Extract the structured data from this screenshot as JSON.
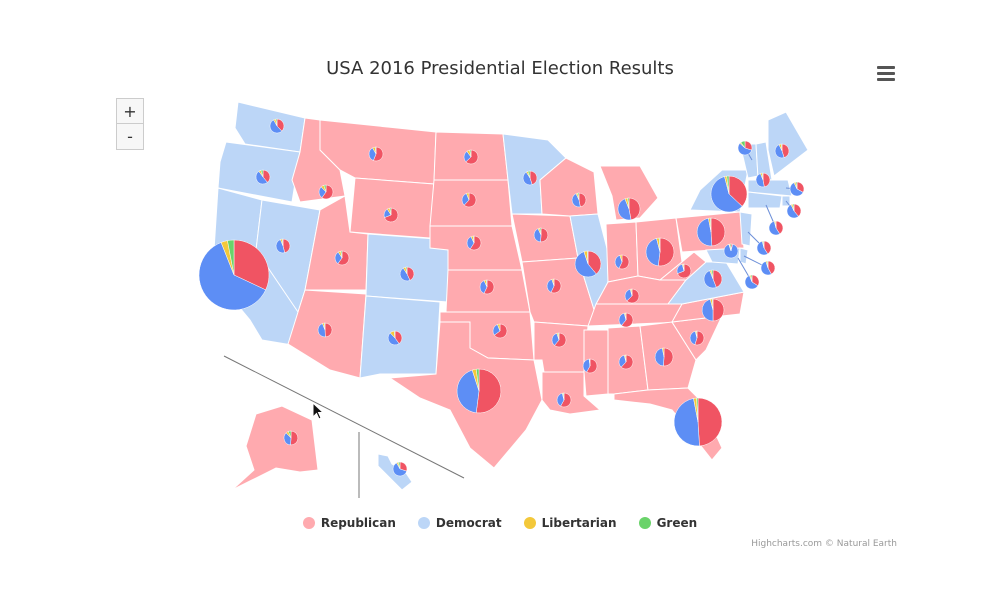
{
  "title": "USA 2016 Presidential Election Results",
  "credits": "Highcharts.com © Natural Earth",
  "zoom": {
    "in_label": "+",
    "out_label": "-"
  },
  "colors": {
    "republican_fill": "#ffaaaf",
    "democrat_fill": "#bcd6f7",
    "republican": "#f05463",
    "democrat": "#5d8ef5",
    "libertarian": "#f3c83a",
    "green": "#6ad36a"
  },
  "legend": [
    {
      "label": "Republican",
      "color": "#ffaaaf"
    },
    {
      "label": "Democrat",
      "color": "#bcd6f7"
    },
    {
      "label": "Libertarian",
      "color": "#f3c83a"
    },
    {
      "label": "Green",
      "color": "#6ad36a"
    }
  ],
  "chart_data": {
    "type": "map-pie",
    "title": "USA 2016 Presidential Election Results",
    "series": [
      "Republican",
      "Democrat",
      "Libertarian",
      "Green"
    ],
    "states": [
      {
        "state": "Washington",
        "winner": "Democrat",
        "shares": [
          38,
          54,
          5,
          3
        ]
      },
      {
        "state": "Oregon",
        "winner": "Democrat",
        "shares": [
          39,
          51,
          5,
          5
        ]
      },
      {
        "state": "California",
        "winner": "Democrat",
        "shares": [
          32,
          62,
          3,
          3
        ]
      },
      {
        "state": "Nevada",
        "winner": "Democrat",
        "shares": [
          46,
          48,
          4,
          2
        ]
      },
      {
        "state": "Idaho",
        "winner": "Republican",
        "shares": [
          60,
          28,
          7,
          5
        ]
      },
      {
        "state": "Montana",
        "winner": "Republican",
        "shares": [
          56,
          36,
          6,
          2
        ]
      },
      {
        "state": "Wyoming",
        "winner": "Republican",
        "shares": [
          69,
          22,
          6,
          3
        ]
      },
      {
        "state": "Utah",
        "winner": "Republican",
        "shares": [
          60,
          31,
          6,
          3
        ]
      },
      {
        "state": "Colorado",
        "winner": "Democrat",
        "shares": [
          43,
          48,
          6,
          3
        ]
      },
      {
        "state": "Arizona",
        "winner": "Republican",
        "shares": [
          49,
          45,
          4,
          2
        ]
      },
      {
        "state": "New Mexico",
        "winner": "Democrat",
        "shares": [
          40,
          48,
          10,
          2
        ]
      },
      {
        "state": "North Dakota",
        "winner": "Republican",
        "shares": [
          63,
          27,
          7,
          3
        ]
      },
      {
        "state": "South Dakota",
        "winner": "Republican",
        "shares": [
          62,
          32,
          6,
          0
        ]
      },
      {
        "state": "Nebraska",
        "winner": "Republican",
        "shares": [
          59,
          34,
          5,
          2
        ]
      },
      {
        "state": "Kansas",
        "winner": "Republican",
        "shares": [
          57,
          36,
          5,
          2
        ]
      },
      {
        "state": "Oklahoma",
        "winner": "Republican",
        "shares": [
          65,
          29,
          6,
          0
        ]
      },
      {
        "state": "Texas",
        "winner": "Republican",
        "shares": [
          52,
          43,
          3,
          2
        ]
      },
      {
        "state": "Minnesota",
        "winner": "Democrat",
        "shares": [
          45,
          46,
          4,
          5
        ]
      },
      {
        "state": "Iowa",
        "winner": "Republican",
        "shares": [
          51,
          42,
          4,
          3
        ]
      },
      {
        "state": "Missouri",
        "winner": "Republican",
        "shares": [
          57,
          38,
          4,
          1
        ]
      },
      {
        "state": "Arkansas",
        "winner": "Republican",
        "shares": [
          61,
          34,
          3,
          2
        ]
      },
      {
        "state": "Louisiana",
        "winner": "Republican",
        "shares": [
          58,
          38,
          2,
          2
        ]
      },
      {
        "state": "Wisconsin",
        "winner": "Republican",
        "shares": [
          47,
          46,
          4,
          3
        ]
      },
      {
        "state": "Illinois",
        "winner": "Democrat",
        "shares": [
          39,
          56,
          4,
          1
        ]
      },
      {
        "state": "Michigan",
        "winner": "Republican",
        "shares": [
          47,
          47,
          4,
          2
        ]
      },
      {
        "state": "Indiana",
        "winner": "Republican",
        "shares": [
          57,
          38,
          5,
          0
        ]
      },
      {
        "state": "Ohio",
        "winner": "Republican",
        "shares": [
          52,
          44,
          3,
          1
        ]
      },
      {
        "state": "Kentucky",
        "winner": "Republican",
        "shares": [
          63,
          33,
          3,
          1
        ]
      },
      {
        "state": "Tennessee",
        "winner": "Republican",
        "shares": [
          61,
          35,
          3,
          1
        ]
      },
      {
        "state": "Mississippi",
        "winner": "Republican",
        "shares": [
          58,
          40,
          1,
          1
        ]
      },
      {
        "state": "Alabama",
        "winner": "Republican",
        "shares": [
          62,
          34,
          3,
          1
        ]
      },
      {
        "state": "Georgia",
        "winner": "Republican",
        "shares": [
          51,
          46,
          3,
          0
        ]
      },
      {
        "state": "Florida",
        "winner": "Republican",
        "shares": [
          49,
          48,
          2,
          1
        ]
      },
      {
        "state": "South Carolina",
        "winner": "Republican",
        "shares": [
          55,
          41,
          3,
          1
        ]
      },
      {
        "state": "North Carolina",
        "winner": "Republican",
        "shares": [
          50,
          46,
          3,
          1
        ]
      },
      {
        "state": "Virginia",
        "winner": "Democrat",
        "shares": [
          44,
          50,
          3,
          3
        ]
      },
      {
        "state": "West Virginia",
        "winner": "Republican",
        "shares": [
          69,
          27,
          3,
          1
        ]
      },
      {
        "state": "Pennsylvania",
        "winner": "Republican",
        "shares": [
          49,
          48,
          2,
          1
        ]
      },
      {
        "state": "New York",
        "winner": "Democrat",
        "shares": [
          37,
          59,
          2,
          2
        ]
      },
      {
        "state": "Vermont",
        "winner": "Democrat",
        "shares": [
          30,
          57,
          3,
          10
        ]
      },
      {
        "state": "New Hampshire",
        "winner": "Democrat",
        "shares": [
          47,
          47,
          4,
          2
        ]
      },
      {
        "state": "Maine",
        "winner": "Democrat",
        "shares": [
          45,
          48,
          5,
          2
        ]
      },
      {
        "state": "Massachusetts",
        "winner": "Democrat",
        "shares": [
          33,
          60,
          4,
          3
        ]
      },
      {
        "state": "Rhode Island",
        "winner": "Democrat",
        "shares": [
          39,
          54,
          4,
          3
        ]
      },
      {
        "state": "Connecticut",
        "winner": "Democrat",
        "shares": [
          41,
          55,
          3,
          1
        ]
      },
      {
        "state": "New Jersey",
        "winner": "Democrat",
        "shares": [
          41,
          55,
          2,
          2
        ]
      },
      {
        "state": "Delaware",
        "winner": "Democrat",
        "shares": [
          42,
          53,
          3,
          2
        ]
      },
      {
        "state": "Maryland",
        "winner": "Democrat",
        "shares": [
          34,
          60,
          3,
          3
        ]
      },
      {
        "state": "District of Columbia",
        "winner": "Democrat",
        "shares": [
          4,
          91,
          2,
          3
        ]
      },
      {
        "state": "Alaska",
        "winner": "Republican",
        "shares": [
          51,
          37,
          6,
          6
        ]
      },
      {
        "state": "Hawaii",
        "winner": "Democrat",
        "shares": [
          30,
          62,
          4,
          4
        ]
      }
    ]
  }
}
